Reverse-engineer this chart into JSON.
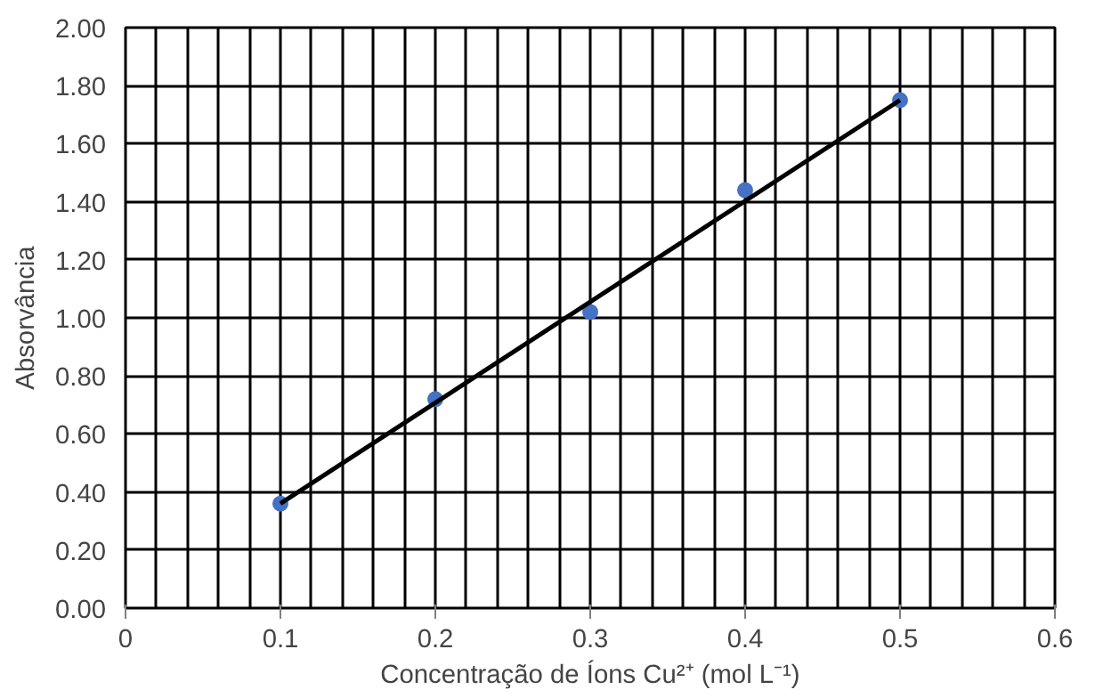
{
  "chart_data": {
    "type": "scatter",
    "xlabel": "Concentração de Íons Cu²⁺ (mol L⁻¹)",
    "ylabel": "Absorvância",
    "xlim": [
      0,
      0.6
    ],
    "xticks": [
      0,
      0.1,
      0.2,
      0.3,
      0.4,
      0.5,
      0.6
    ],
    "ylim": [
      0,
      2
    ],
    "yticks": [
      {
        "value": 0,
        "label": "0.00"
      },
      {
        "value": 0.2,
        "label": "0.20"
      },
      {
        "value": 0.4,
        "label": "0.40"
      },
      {
        "value": 0.6,
        "label": "0.60"
      },
      {
        "value": 0.8,
        "label": "0.80"
      },
      {
        "value": 1,
        "label": "1.00"
      },
      {
        "value": 1.2,
        "label": "1.20"
      },
      {
        "value": 1.4,
        "label": "1.40"
      },
      {
        "value": 1.6,
        "label": "1.60"
      },
      {
        "value": 1.8,
        "label": "1.80"
      },
      {
        "value": 2,
        "label": "2.00"
      }
    ],
    "grid": true,
    "marker": "circle",
    "series": [
      {
        "color": "#4472c4",
        "x": [
          0.1,
          0.2,
          0.3,
          0.4,
          0.5
        ],
        "values": [
          0.36,
          0.72,
          1.02,
          1.44,
          1.75
        ]
      },
      {
        "type": "line",
        "color": "#000000",
        "x": [
          0.1,
          0.5
        ],
        "values": [
          0.36,
          1.75
        ],
        "marker": "none",
        "line_style": "solid"
      }
    ]
  }
}
